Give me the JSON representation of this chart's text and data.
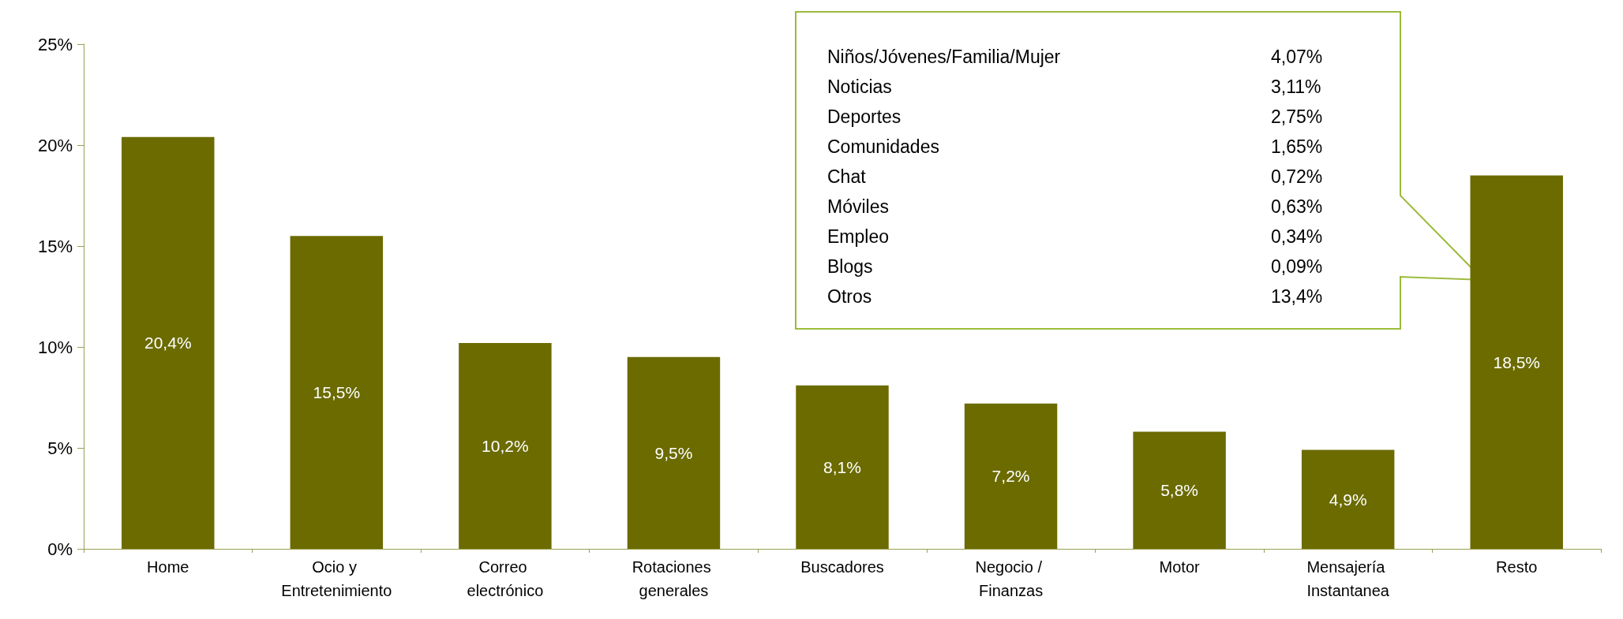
{
  "chart_data": {
    "type": "bar",
    "categories": [
      "Home",
      "Ocio y Entretenimiento",
      "Correo electrónico",
      "Rotaciones generales",
      "Buscadores",
      "Negocio / Finanzas",
      "Motor",
      "Mensajería Instantanea",
      "Resto"
    ],
    "values": [
      20.4,
      15.5,
      10.2,
      9.5,
      8.1,
      7.2,
      5.8,
      4.9,
      18.5
    ],
    "value_labels": [
      "20,4%",
      "15,5%",
      "10,2%",
      "9,5%",
      "8,1%",
      "7,2%",
      "5,8%",
      "4,9%",
      "18,5%"
    ],
    "color": "#6b6b00",
    "ylim": [
      0,
      25
    ],
    "yticks": [
      {
        "value": 0,
        "label": "0%"
      },
      {
        "value": 5,
        "label": "5%"
      },
      {
        "value": 10,
        "label": "10%"
      },
      {
        "value": 15,
        "label": "15%"
      },
      {
        "value": 20,
        "label": "20%"
      },
      {
        "value": 25,
        "label": "25%"
      }
    ],
    "grid": false,
    "annotations": [
      "Niños/Jóvenes/Familia/Mujer",
      "4,07%",
      "Noticias",
      "3,11%",
      "Deportes",
      "2,75%",
      "Comunidades",
      "1,65%",
      "Chat",
      "0,72%",
      "Móviles",
      "0,63%",
      "Empleo",
      "0,34%",
      "Blogs",
      "0,09%",
      "Otros",
      "13,4%"
    ]
  }
}
